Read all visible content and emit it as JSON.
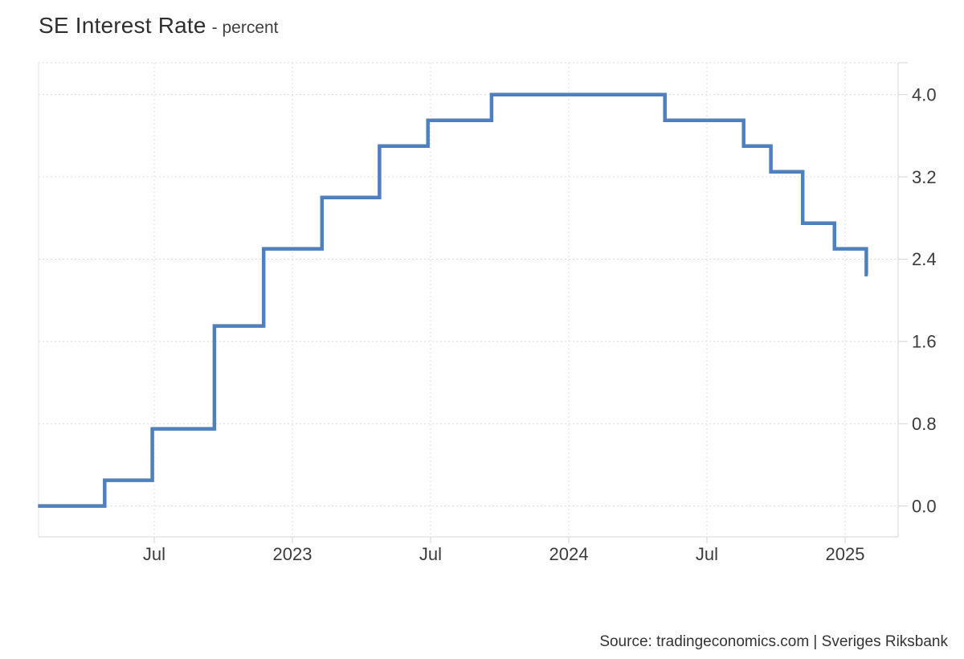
{
  "header": {
    "title": "SE Interest Rate",
    "subtitle": "- percent"
  },
  "footer": {
    "source": "Source: tradingeconomics.com | Sveriges Riksbank"
  },
  "chart_data": {
    "type": "line",
    "subtype": "step-after",
    "title": "SE Interest Rate",
    "ylabel": "percent",
    "xlabel": "",
    "legend": "none",
    "grid": "dotted",
    "line_color": "#4f7fbc",
    "gridline_color": "#dcdcdc",
    "axis_color": "#d4d4d4",
    "plot_border_color": "#e3e3e3",
    "tick_label_color": "#3b3b3b",
    "xlim_decimal_years": [
      2022.0814,
      2025.1919
    ],
    "ylim": [
      -0.3,
      4.31
    ],
    "x_ticks": [
      {
        "t": 2022.5,
        "label": "Jul"
      },
      {
        "t": 2023.0,
        "label": "2023"
      },
      {
        "t": 2023.5,
        "label": "Jul"
      },
      {
        "t": 2024.0,
        "label": "2024"
      },
      {
        "t": 2024.5,
        "label": "Jul"
      },
      {
        "t": 2025.0,
        "label": "2025"
      }
    ],
    "y_ticks": [
      {
        "v": 0.0,
        "label": "0.0"
      },
      {
        "v": 0.8,
        "label": "0.8"
      },
      {
        "v": 1.6,
        "label": "1.6"
      },
      {
        "v": 2.4,
        "label": "2.4"
      },
      {
        "v": 3.2,
        "label": "3.2"
      },
      {
        "v": 4.0,
        "label": "4.0"
      }
    ],
    "series": [
      {
        "name": "SE Interest Rate",
        "unit": "percent",
        "start": {
          "date": "2022-01-30",
          "rate": 0.0
        },
        "changes": [
          {
            "date": "2022-04-28",
            "rate": 0.25
          },
          {
            "date": "2022-06-30",
            "rate": 0.75
          },
          {
            "date": "2022-09-20",
            "rate": 1.75
          },
          {
            "date": "2022-11-24",
            "rate": 2.5
          },
          {
            "date": "2023-02-09",
            "rate": 3.0
          },
          {
            "date": "2023-04-26",
            "rate": 3.5
          },
          {
            "date": "2023-06-29",
            "rate": 3.75
          },
          {
            "date": "2023-09-21",
            "rate": 4.0
          },
          {
            "date": "2024-05-08",
            "rate": 3.75
          },
          {
            "date": "2024-08-20",
            "rate": 3.5
          },
          {
            "date": "2024-09-25",
            "rate": 3.25
          },
          {
            "date": "2024-11-06",
            "rate": 2.75
          },
          {
            "date": "2024-12-18",
            "rate": 2.5
          },
          {
            "date": "2025-01-29",
            "rate": 2.25
          }
        ],
        "end_date": "2025-01-31"
      }
    ]
  }
}
